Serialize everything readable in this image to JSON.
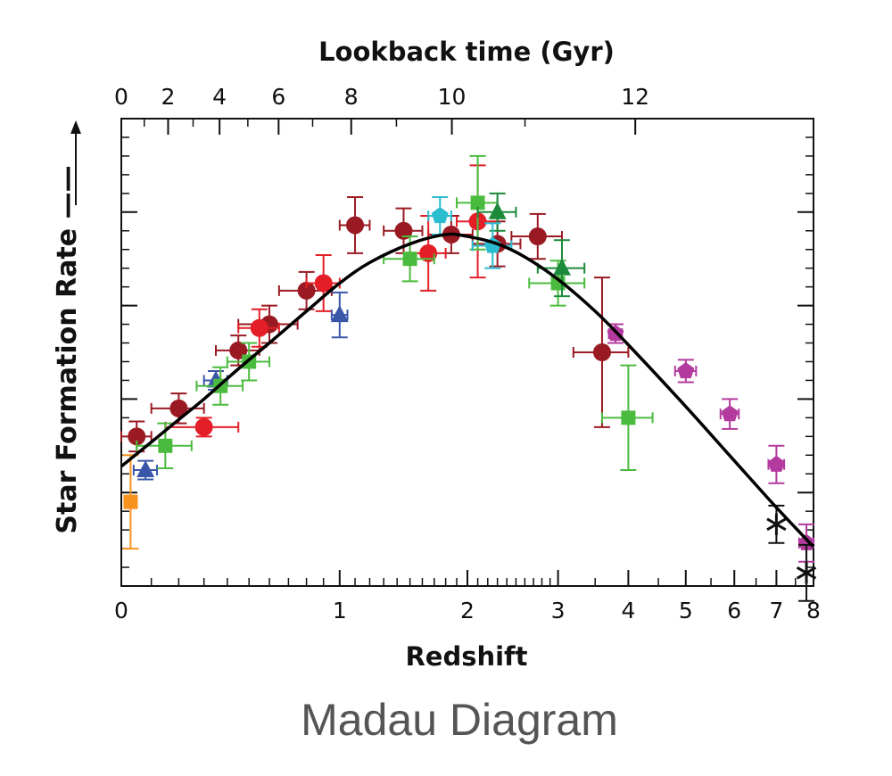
{
  "caption": "Madau Diagram",
  "chart_data": {
    "type": "scatter",
    "title": "",
    "xlabel": "Redshift",
    "x2label": "Lookback time (Gyr)",
    "ylabel": "Star Formation Rate ——",
    "x_axis_scale": "log(1+z)",
    "xlim": [
      0,
      8
    ],
    "x_ticks": [
      0,
      1,
      2,
      3,
      4,
      5,
      6,
      7,
      8
    ],
    "x2_ticks": [
      0,
      2,
      4,
      6,
      8,
      10,
      12
    ],
    "y_tick_labels_shown": false,
    "ylim": [
      -2.5,
      0.0
    ],
    "grid": false,
    "legend": "none",
    "fit_curve": {
      "name": "",
      "color": "#000000",
      "points": [
        [
          0.0,
          -1.86
        ],
        [
          0.1,
          -1.73
        ],
        [
          0.2,
          -1.61
        ],
        [
          0.3,
          -1.5
        ],
        [
          0.4,
          -1.39
        ],
        [
          0.5,
          -1.29
        ],
        [
          0.6,
          -1.2
        ],
        [
          0.8,
          -1.03
        ],
        [
          1.0,
          -0.88
        ],
        [
          1.2,
          -0.77
        ],
        [
          1.5,
          -0.67
        ],
        [
          1.8,
          -0.62
        ],
        [
          2.0,
          -0.63
        ],
        [
          2.3,
          -0.67
        ],
        [
          2.6,
          -0.74
        ],
        [
          3.0,
          -0.86
        ],
        [
          3.5,
          -1.03
        ],
        [
          4.0,
          -1.21
        ],
        [
          5.0,
          -1.54
        ],
        [
          6.0,
          -1.83
        ],
        [
          7.0,
          -2.08
        ],
        [
          8.0,
          -2.29
        ]
      ]
    },
    "series": [
      {
        "color": "#9a1a23",
        "marker": "circle",
        "points": [
          {
            "x": 0.05,
            "y": -1.7,
            "xerr": 0.05,
            "yerr": 0.08
          },
          {
            "x": 0.2,
            "y": -1.55,
            "xerr": 0.1,
            "yerr": 0.08
          },
          {
            "x": 0.45,
            "y": -1.24,
            "xerr": 0.1,
            "yerr": 0.08
          },
          {
            "x": 0.6,
            "y": -1.1,
            "xerr": 0.15,
            "yerr": 0.1
          },
          {
            "x": 0.8,
            "y": -0.92,
            "xerr": 0.15,
            "yerr": 0.1
          },
          {
            "x": 1.1,
            "y": -0.57,
            "xerr": 0.1,
            "yerr": 0.15
          },
          {
            "x": 1.45,
            "y": -0.6,
            "xerr": 0.15,
            "yerr": 0.12
          },
          {
            "x": 1.85,
            "y": -0.62,
            "xerr": 0.2,
            "yerr": 0.1
          },
          {
            "x": 2.3,
            "y": -0.67,
            "xerr": 0.25,
            "yerr": 0.12
          },
          {
            "x": 2.75,
            "y": -0.63,
            "xerr": 0.3,
            "yerr": 0.12
          },
          {
            "x": 3.6,
            "y": -1.25,
            "xerr": 0.4,
            "yerr": 0.4
          }
        ]
      },
      {
        "color": "#e41e26",
        "marker": "circle",
        "points": [
          {
            "x": 0.3,
            "y": -1.65,
            "xerr": 0.15,
            "yerr": 0.05
          },
          {
            "x": 0.55,
            "y": -1.12,
            "xerr": 0.1,
            "yerr": 0.1
          },
          {
            "x": 0.9,
            "y": -0.88,
            "xerr": 0.1,
            "yerr": 0.15
          },
          {
            "x": 1.65,
            "y": -0.72,
            "xerr": 0.15,
            "yerr": 0.2
          },
          {
            "x": 2.1,
            "y": -0.55,
            "xerr": 0.2,
            "yerr": 0.3
          }
        ]
      },
      {
        "color": "#3a56a8",
        "marker": "triangle",
        "points": [
          {
            "x": 0.35,
            "y": -1.4,
            "xerr": 0.05,
            "yerr": 0.05
          },
          {
            "x": 1.0,
            "y": -1.05,
            "xerr": 0.05,
            "yerr": 0.12
          },
          {
            "x": 0.08,
            "y": -1.88,
            "xerr": 0.04,
            "yerr": 0.05
          }
        ]
      },
      {
        "color": "#4bbb3f",
        "marker": "square",
        "points": [
          {
            "x": 0.15,
            "y": -1.75,
            "xerr": 0.1,
            "yerr": 0.12
          },
          {
            "x": 0.37,
            "y": -1.43,
            "xerr": 0.1,
            "yerr": 0.1
          },
          {
            "x": 0.5,
            "y": -1.3,
            "xerr": 0.1,
            "yerr": 0.1
          },
          {
            "x": 1.5,
            "y": -0.75,
            "xerr": 0.2,
            "yerr": 0.12
          },
          {
            "x": 2.1,
            "y": -0.45,
            "xerr": 0.2,
            "yerr": 0.25
          },
          {
            "x": 3.0,
            "y": -0.88,
            "xerr": 0.35,
            "yerr": 0.12
          },
          {
            "x": 4.0,
            "y": -1.6,
            "xerr": 0.4,
            "yerr": 0.28
          }
        ]
      },
      {
        "color": "#1b8a3a",
        "marker": "triangle",
        "points": [
          {
            "x": 2.3,
            "y": -0.5,
            "xerr": 0.2,
            "yerr": 0.1
          },
          {
            "x": 3.05,
            "y": -0.8,
            "xerr": 0.3,
            "yerr": 0.15
          }
        ]
      },
      {
        "color": "#2bbcd0",
        "marker": "pentagon",
        "points": [
          {
            "x": 1.75,
            "y": -0.52,
            "xerr": 0.1,
            "yerr": 0.1
          },
          {
            "x": 2.25,
            "y": -0.68,
            "xerr": 0.2,
            "yerr": 0.12
          }
        ]
      },
      {
        "color": "#b33a9e",
        "marker": "pentagon",
        "points": [
          {
            "x": 3.8,
            "y": -1.15,
            "xerr": 0.1,
            "yerr": 0.05
          },
          {
            "x": 5.0,
            "y": -1.35,
            "xerr": 0.2,
            "yerr": 0.06
          },
          {
            "x": 5.9,
            "y": -1.58,
            "xerr": 0.2,
            "yerr": 0.08
          },
          {
            "x": 7.0,
            "y": -1.85,
            "xerr": 0.2,
            "yerr": 0.1
          },
          {
            "x": 7.8,
            "y": -2.27,
            "xerr": 0.2,
            "yerr": 0.1
          }
        ]
      },
      {
        "color": "#f7921e",
        "marker": "square",
        "points": [
          {
            "x": 0.03,
            "y": -2.05,
            "xerr": 0.02,
            "yerr": 0.25
          }
        ]
      },
      {
        "color": "#111111",
        "marker": "asterisk",
        "points": [
          {
            "x": 7.0,
            "y": -2.17,
            "xerr": 0.0,
            "yerr": 0.1
          },
          {
            "x": 7.8,
            "y": -2.43,
            "xerr": 0.0,
            "yerr": 0.15
          }
        ]
      }
    ]
  }
}
